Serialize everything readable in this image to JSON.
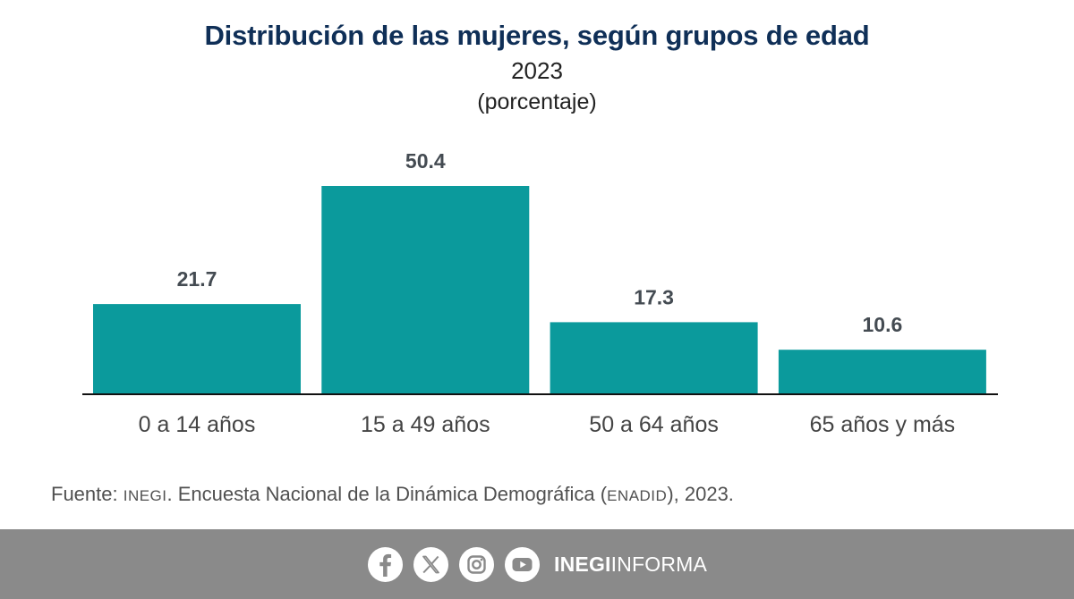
{
  "chart_data": {
    "type": "bar",
    "title": "Distribución de las mujeres, según grupos de edad",
    "subtitle": "2023",
    "unit_label": "(porcentaje)",
    "categories": [
      "0 a 14 años",
      "15 a 49 años",
      "50 a 64 años",
      "65 años y más"
    ],
    "values": [
      21.7,
      50.4,
      17.3,
      10.6
    ],
    "value_labels": [
      "21.7",
      "50.4",
      "17.3",
      "10.6"
    ],
    "ylim": [
      0,
      50.4
    ],
    "grid": false,
    "bar_color": "#0b9a9c",
    "label_color": "#444b52"
  },
  "source": {
    "prefix": "Fuente: ",
    "org": "INEGI",
    "middle": ". Encuesta Nacional de la Dinámica Demográfica (",
    "survey": "ENADID",
    "suffix": "), 2023."
  },
  "footer": {
    "icons": [
      "facebook-icon",
      "x-icon",
      "instagram-icon",
      "youtube-icon"
    ],
    "brand_bold": "INEGI",
    "brand_regular": "INFORMA"
  }
}
